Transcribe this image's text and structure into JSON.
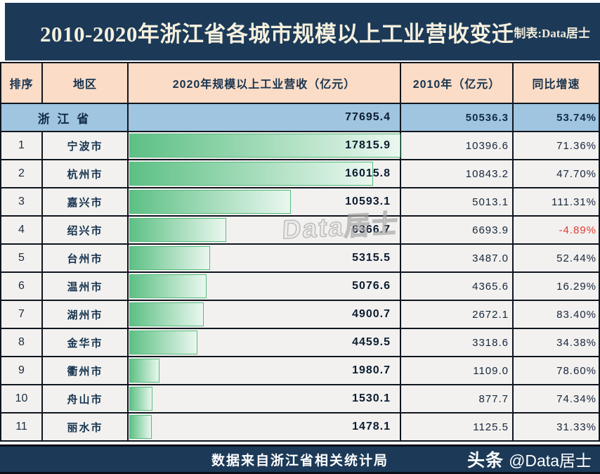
{
  "banner": {
    "title": "2010-2020年浙江省各城市规模以上工业营收变迁",
    "credit": "制表:Data居士"
  },
  "table": {
    "columns": [
      "排序",
      "地区",
      "2020年规模以上工业营收（亿元）",
      "2010年（亿元）",
      "同比增速"
    ],
    "province_row": {
      "region": "浙 江 省",
      "v2020": "77695.4",
      "v2010": "50536.3",
      "growth": "53.74%"
    },
    "rows": [
      {
        "rank": "1",
        "city": "宁波市",
        "v2020": "17815.9",
        "v2010": "10396.6",
        "growth": "71.36%",
        "bar_pct": 100
      },
      {
        "rank": "2",
        "city": "杭州市",
        "v2020": "16015.8",
        "v2010": "10843.2",
        "growth": "47.70%",
        "bar_pct": 89.9
      },
      {
        "rank": "3",
        "city": "嘉兴市",
        "v2020": "10593.1",
        "v2010": "5013.1",
        "growth": "111.31%",
        "bar_pct": 59.46
      },
      {
        "rank": "4",
        "city": "绍兴市",
        "v2020": "6366.7",
        "v2010": "6693.9",
        "growth": "-4.89%",
        "bar_pct": 35.74
      },
      {
        "rank": "5",
        "city": "台州市",
        "v2020": "5315.5",
        "v2010": "3487.0",
        "growth": "52.44%",
        "bar_pct": 29.84
      },
      {
        "rank": "6",
        "city": "温州市",
        "v2020": "5076.6",
        "v2010": "4365.6",
        "growth": "16.29%",
        "bar_pct": 28.49
      },
      {
        "rank": "7",
        "city": "湖州市",
        "v2020": "4900.7",
        "v2010": "2672.1",
        "growth": "83.40%",
        "bar_pct": 27.51
      },
      {
        "rank": "8",
        "city": "金华市",
        "v2020": "4459.5",
        "v2010": "3318.6",
        "growth": "34.38%",
        "bar_pct": 25.03
      },
      {
        "rank": "9",
        "city": "衢州市",
        "v2020": "1980.7",
        "v2010": "1109.0",
        "growth": "78.60%",
        "bar_pct": 11.12
      },
      {
        "rank": "10",
        "city": "舟山市",
        "v2020": "1530.1",
        "v2010": "877.7",
        "growth": "74.34%",
        "bar_pct": 8.59
      },
      {
        "rank": "11",
        "city": "丽水市",
        "v2020": "1478.1",
        "v2010": "1125.5",
        "growth": "31.33%",
        "bar_pct": 8.3
      }
    ]
  },
  "watermark": "Data居士",
  "footer": {
    "source": "数据来自浙江省相关统计局",
    "brand": "头条",
    "handle": "@Data居士"
  },
  "colors": {
    "banner_bg": "#1c3a58",
    "header_bg": "#fbdcc6",
    "province_bg": "#9fc5e0",
    "row_bg": "#f2f1ef",
    "grid": "#10161f",
    "bar_gradient_start": "#5dc084",
    "bar_gradient_end": "#eaf7ef",
    "bar_border": "#55bb7e",
    "title_text": "#f6f0de",
    "negative_text": "#e23c30",
    "body_text": "#16334f"
  },
  "chart_data": {
    "type": "bar",
    "title": "2010-2020年浙江省各城市规模以上工业营收变迁",
    "categories": [
      "浙江省",
      "宁波市",
      "杭州市",
      "嘉兴市",
      "绍兴市",
      "台州市",
      "温州市",
      "湖州市",
      "金华市",
      "衢州市",
      "舟山市",
      "丽水市"
    ],
    "series": [
      {
        "name": "2020年规模以上工业营收（亿元）",
        "values": [
          77695.4,
          17815.9,
          16015.8,
          10593.1,
          6366.7,
          5315.5,
          5076.6,
          4900.7,
          4459.5,
          1980.7,
          1530.1,
          1478.1
        ]
      },
      {
        "name": "2010年（亿元）",
        "values": [
          50536.3,
          10396.6,
          10843.2,
          5013.1,
          6693.9,
          3487.0,
          4365.6,
          2672.1,
          3318.6,
          1109.0,
          877.7,
          1125.5
        ]
      },
      {
        "name": "同比增速(%)",
        "values": [
          53.74,
          71.36,
          47.7,
          111.31,
          -4.89,
          52.44,
          16.29,
          83.4,
          34.38,
          78.6,
          74.34,
          31.33
        ]
      }
    ],
    "xlabel": "地区",
    "ylabel": "营收（亿元）",
    "ylim": [
      0,
      17815.9
    ],
    "legend_position": "none",
    "grid": false,
    "note": "横向条形内嵌于表格第三列，条长与2020年营收成比例，最大值17815.9为满条"
  }
}
